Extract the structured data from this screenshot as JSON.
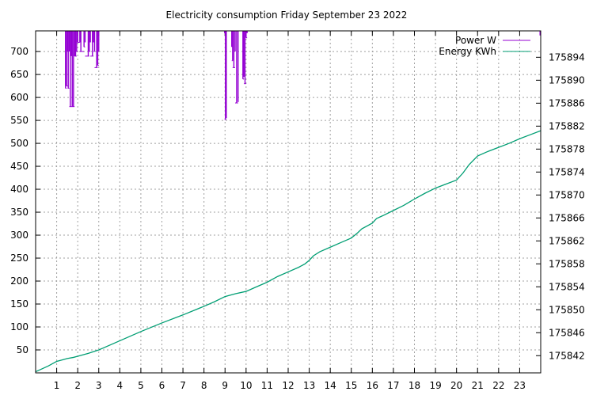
{
  "chart_data": {
    "type": "line",
    "title": "Electricity consumption Friday September 23 2022",
    "xlabel": "",
    "ylabel": "",
    "y2label": "",
    "xlim": [
      0,
      24
    ],
    "ylim": [
      0,
      745
    ],
    "y2lim": [
      175839.0,
      175898.6
    ],
    "x_ticks": [
      1,
      2,
      3,
      4,
      5,
      6,
      7,
      8,
      9,
      10,
      11,
      12,
      13,
      14,
      15,
      16,
      17,
      18,
      19,
      20,
      21,
      22,
      23
    ],
    "y_ticks": [
      50,
      100,
      150,
      200,
      250,
      300,
      350,
      400,
      450,
      500,
      550,
      600,
      650,
      700
    ],
    "y2_ticks": [
      175842,
      175846,
      175850,
      175854,
      175858,
      175862,
      175866,
      175870,
      175874,
      175878,
      175882,
      175886,
      175890,
      175894
    ],
    "grid": true,
    "legend_position": "top-right",
    "colors": {
      "power": "#9400d3",
      "energy": "#009e73"
    },
    "series": [
      {
        "name": "Power W",
        "axis": "left",
        "style": "impulse-from-top",
        "x": [
          1.42,
          1.47,
          1.52,
          1.55,
          1.6,
          1.65,
          1.7,
          1.74,
          1.8,
          1.85,
          1.9,
          1.95,
          2.0,
          2.1,
          2.15,
          2.3,
          2.35,
          2.5,
          2.55,
          2.6,
          2.7,
          2.75,
          2.8,
          2.9,
          2.95,
          3.0,
          8.98,
          9.02,
          9.06,
          9.32,
          9.36,
          9.42,
          9.48,
          9.55,
          9.62,
          9.85,
          9.9,
          9.95,
          10.0,
          10.05,
          23.97
        ],
        "values": [
          620,
          625,
          700,
          620,
          700,
          580,
          690,
          580,
          580,
          690,
          690,
          700,
          720,
          720,
          700,
          710,
          720,
          690,
          700,
          720,
          690,
          720,
          700,
          665,
          670,
          700,
          740,
          552,
          555,
          710,
          680,
          665,
          700,
          588,
          590,
          640,
          645,
          630,
          730,
          740,
          735
        ]
      },
      {
        "name": "Energy KWh",
        "axis": "right",
        "style": "line",
        "x": [
          0,
          0.3,
          0.6,
          0.9,
          1.0,
          1.3,
          1.5,
          1.8,
          2.0,
          2.5,
          3.0,
          4.0,
          5.0,
          6.0,
          7.0,
          8.0,
          8.5,
          9.0,
          9.5,
          10.0,
          10.5,
          11.0,
          11.5,
          12.0,
          12.5,
          12.8,
          13.0,
          13.2,
          13.5,
          14.0,
          14.5,
          15.0,
          15.3,
          15.5,
          16.0,
          16.2,
          16.5,
          17.0,
          17.5,
          18.0,
          18.5,
          19.0,
          19.5,
          20.0,
          20.3,
          20.6,
          21.0,
          21.5,
          22.0,
          22.5,
          23.0,
          23.5,
          24.0
        ],
        "values": [
          175839.2,
          175839.7,
          175840.2,
          175840.8,
          175841.0,
          175841.3,
          175841.5,
          175841.7,
          175841.9,
          175842.4,
          175843.0,
          175844.6,
          175846.2,
          175847.7,
          175849.1,
          175850.6,
          175851.4,
          175852.3,
          175852.8,
          175853.2,
          175854.0,
          175854.8,
          175855.8,
          175856.6,
          175857.4,
          175858.0,
          175858.6,
          175859.4,
          175860.1,
          175860.9,
          175861.7,
          175862.5,
          175863.4,
          175864.1,
          175865.1,
          175865.9,
          175866.4,
          175867.3,
          175868.2,
          175869.3,
          175870.3,
          175871.2,
          175871.9,
          175872.6,
          175873.8,
          175875.3,
          175876.8,
          175877.6,
          175878.3,
          175879.0,
          175879.8,
          175880.5,
          175881.2
        ]
      }
    ]
  }
}
